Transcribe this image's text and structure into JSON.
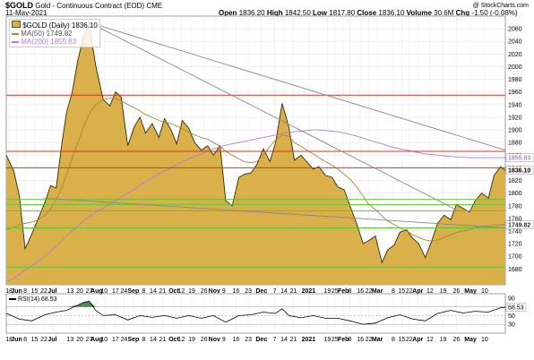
{
  "header": {
    "symbol": "$GOLD",
    "description": "Gold - Continuous Contract (EOD)",
    "exchange": "CME",
    "date": "11-May-2021",
    "open_label": "Open",
    "open": "1836.20",
    "high_label": "High",
    "high": "1842.50",
    "low_label": "Low",
    "low": "1817.80",
    "close_label": "Close",
    "close": "1836.10",
    "volume_label": "Volume",
    "volume": "30.6M",
    "chg_label": "Chg",
    "chg": "-1.50 (-0.08%)",
    "watermark": "@ StockCharts.com"
  },
  "colors": {
    "price_fill": "#d9b04a",
    "price_line": "#3a2a00",
    "ma50": "#a08a3a",
    "ma200": "#b47adf",
    "resistance": "#e0301e",
    "support": "#5ec232",
    "trend": "#8a8a8a",
    "rsi_line": "#000000",
    "rsi_fill": "#4f8a4f"
  },
  "chart_data": [
    {
      "type": "area",
      "title": "$GOLD (Daily) 1836.10",
      "legend": [
        {
          "name": "$GOLD (Daily) 1836.10",
          "color": "#d9b04a"
        },
        {
          "name": "MA(50) 1749.82",
          "color": "#a08a3a"
        },
        {
          "name": "MA(200) 1855.83",
          "color": "#b47adf"
        }
      ],
      "legend_placement": "top-left",
      "ylim": [
        1655,
        2080
      ],
      "y_ticks": [
        1680,
        1700,
        1720,
        1740,
        1760,
        1780,
        1800,
        1820,
        1840,
        1860,
        1880,
        1900,
        1920,
        1940,
        1960,
        1980,
        2000,
        2020,
        2040,
        2060
      ],
      "x_tick_labels": [
        "18",
        "Jun",
        "8",
        "15",
        "22",
        "Jul",
        "13",
        "20",
        "27",
        "Aug",
        "10",
        "17",
        "24",
        "Sep",
        "8",
        "14",
        "21",
        "Oct",
        "12",
        "19",
        "26",
        "Nov",
        "9",
        "16",
        "23",
        "Dec",
        "7",
        "14",
        "21",
        "2021",
        "19",
        "25",
        "Feb",
        "8",
        "16",
        "22",
        "Mar",
        "8",
        "15",
        "22",
        "Apr",
        "12",
        "19",
        "26",
        "May",
        "10"
      ],
      "x_ticks_idx": [
        3,
        11,
        20,
        30,
        40,
        49,
        68,
        78,
        88,
        96,
        104,
        116,
        125,
        135,
        146,
        156,
        166,
        178,
        186,
        197,
        210,
        221,
        231,
        244,
        257,
        271,
        285,
        295,
        305,
        321,
        341,
        349,
        358,
        365,
        376,
        385,
        394,
        411,
        420,
        428,
        437,
        450,
        464,
        478,
        493,
        508
      ],
      "grid": true,
      "price_labels": {
        "close": "1836.10",
        "ma200": "1855.83",
        "ma50": "1749.82"
      },
      "horizontal_lines": {
        "resistance": [
          1955,
          1866,
          1840
        ],
        "support": [
          1790,
          1782,
          1772,
          1745,
          1683
        ]
      },
      "trendlines": [
        {
          "from": [
            88,
            2070
          ],
          "to": [
            530,
            1868
          ]
        },
        {
          "from": [
            88,
            2070
          ],
          "to": [
            480,
            1772
          ]
        },
        {
          "from": [
            40,
            1792
          ],
          "to": [
            530,
            1745
          ]
        }
      ],
      "x": [
        0,
        8,
        14,
        20,
        27,
        34,
        41,
        47,
        53,
        59,
        64,
        70,
        76,
        82,
        88,
        95,
        103,
        110,
        116,
        122,
        129,
        136,
        142,
        148,
        155,
        162,
        168,
        175,
        181,
        187,
        194,
        200,
        207,
        214,
        220,
        227,
        233,
        240,
        247,
        253,
        260,
        266,
        273,
        280,
        286,
        293,
        300,
        306,
        313,
        319,
        326,
        332,
        339,
        346,
        352,
        359,
        365,
        372,
        379,
        385,
        392,
        399,
        405,
        412,
        418,
        425,
        432,
        438,
        445,
        452,
        458,
        465,
        472,
        478,
        485,
        492,
        498,
        505,
        512,
        518,
        525,
        530
      ],
      "series": [
        {
          "name": "$GOLD (Daily) 1836.10",
          "values": [
            1860,
            1835,
            1795,
            1712,
            1735,
            1760,
            1785,
            1812,
            1808,
            1878,
            1928,
            1960,
            2010,
            2048,
            2068,
            2002,
            1948,
            1938,
            1960,
            1952,
            1875,
            1905,
            1920,
            1895,
            1910,
            1888,
            1918,
            1900,
            1878,
            1915,
            1902,
            1880,
            1868,
            1875,
            1860,
            1875,
            1788,
            1780,
            1825,
            1830,
            1832,
            1845,
            1870,
            1850,
            1880,
            1942,
            1905,
            1852,
            1860,
            1850,
            1838,
            1842,
            1828,
            1825,
            1810,
            1805,
            1780,
            1752,
            1720,
            1725,
            1732,
            1690,
            1710,
            1718,
            1738,
            1742,
            1728,
            1720,
            1698,
            1725,
            1752,
            1765,
            1758,
            1782,
            1776,
            1770,
            1788,
            1800,
            1792,
            1828,
            1842,
            1836
          ]
        },
        {
          "name": "MA(50) 1749.82",
          "values": [
            1742,
            1746,
            1750,
            1752,
            1754,
            1758,
            1765,
            1775,
            1790,
            1808,
            1830,
            1855,
            1880,
            1905,
            1925,
            1940,
            1948,
            1950,
            1950,
            1946,
            1940,
            1935,
            1930,
            1924,
            1920,
            1915,
            1912,
            1910,
            1906,
            1902,
            1896,
            1892,
            1888,
            1885,
            1880,
            1874,
            1866,
            1860,
            1854,
            1850,
            1848,
            1850,
            1860,
            1874,
            1884,
            1892,
            1890,
            1880,
            1874,
            1868,
            1862,
            1856,
            1850,
            1844,
            1838,
            1830,
            1822,
            1810,
            1795,
            1782,
            1774,
            1764,
            1756,
            1750,
            1745,
            1740,
            1734,
            1730,
            1726,
            1724,
            1726,
            1730,
            1734,
            1738,
            1740,
            1742,
            1746,
            1748,
            1748,
            1749,
            1750,
            1750
          ]
        },
        {
          "name": "MA(200) 1855.83",
          "values": [
            1660,
            1665,
            1672,
            1678,
            1685,
            1692,
            1700,
            1708,
            1716,
            1724,
            1732,
            1740,
            1748,
            1756,
            1764,
            1770,
            1776,
            1782,
            1788,
            1794,
            1800,
            1806,
            1812,
            1818,
            1824,
            1830,
            1835,
            1840,
            1845,
            1850,
            1854,
            1858,
            1862,
            1866,
            1870,
            1873,
            1876,
            1878,
            1880,
            1882,
            1884,
            1886,
            1888,
            1890,
            1892,
            1894,
            1896,
            1897,
            1898,
            1899,
            1900,
            1900,
            1899,
            1898,
            1897,
            1895,
            1893,
            1890,
            1887,
            1884,
            1881,
            1878,
            1875,
            1872,
            1870,
            1868,
            1866,
            1864,
            1862,
            1861,
            1860,
            1859,
            1858,
            1857,
            1857,
            1856,
            1856,
            1856,
            1856,
            1856,
            1856,
            1856
          ]
        }
      ]
    },
    {
      "type": "line",
      "title": "RSI(14) 68.53",
      "legend": [
        {
          "name": "RSI(14) 68.53",
          "color": "#000000"
        }
      ],
      "ylim": [
        10,
        100
      ],
      "y_ticks": [
        10,
        30,
        50,
        70,
        90
      ],
      "levels": [
        30,
        50,
        70
      ],
      "value_label": "68.53",
      "x_tick_labels": [
        "18",
        "Jun",
        "8",
        "15",
        "22",
        "Jul",
        "13",
        "20",
        "27",
        "Aug",
        "10",
        "17",
        "24",
        "Sep",
        "8",
        "14",
        "21",
        "Oct",
        "12",
        "19",
        "26",
        "Nov",
        "9",
        "16",
        "23",
        "Dec",
        "7",
        "14",
        "21",
        "2021",
        "19",
        "25",
        "Feb",
        "8",
        "16",
        "22",
        "Mar",
        "8",
        "15",
        "22",
        "Apr",
        "12",
        "19",
        "26",
        "May",
        "10"
      ],
      "x_ticks_idx": [
        3,
        11,
        20,
        30,
        40,
        49,
        68,
        78,
        88,
        96,
        104,
        116,
        125,
        135,
        146,
        156,
        166,
        178,
        186,
        197,
        210,
        221,
        231,
        244,
        257,
        271,
        285,
        295,
        305,
        321,
        341,
        349,
        358,
        365,
        376,
        385,
        394,
        411,
        420,
        428,
        437,
        450,
        464,
        478,
        493,
        508
      ],
      "x": [
        0,
        14,
        27,
        41,
        53,
        64,
        76,
        82,
        88,
        95,
        103,
        116,
        129,
        142,
        155,
        168,
        181,
        194,
        207,
        220,
        233,
        247,
        260,
        273,
        286,
        293,
        300,
        313,
        326,
        339,
        352,
        365,
        379,
        392,
        405,
        418,
        432,
        445,
        458,
        472,
        485,
        498,
        512,
        525,
        530
      ],
      "values": [
        55,
        42,
        38,
        52,
        58,
        62,
        74,
        80,
        83,
        62,
        50,
        52,
        40,
        50,
        46,
        50,
        44,
        50,
        44,
        50,
        35,
        50,
        52,
        58,
        55,
        66,
        50,
        45,
        50,
        44,
        44,
        38,
        30,
        33,
        45,
        52,
        42,
        38,
        55,
        62,
        56,
        60,
        58,
        68,
        69
      ]
    }
  ]
}
